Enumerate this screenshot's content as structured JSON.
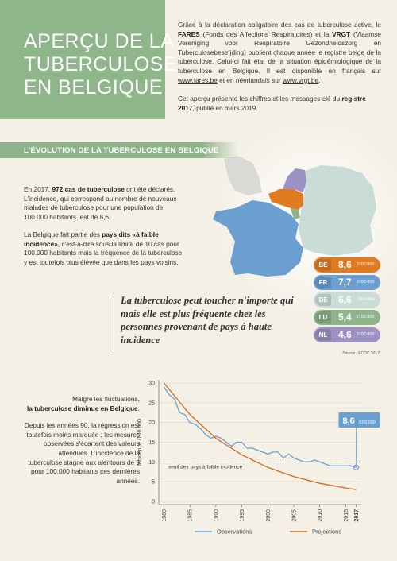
{
  "header": {
    "title": [
      "APERÇU DE LA",
      "TUBERCULOSE",
      "EN BELGIQUE"
    ]
  },
  "intro": {
    "paragraphs": [
      [
        "Grâce à la déclaration obligatoire des cas de tuberculose active, le ",
        "FARES",
        " (Fonds des Affections Respiratoires) et la ",
        "VRGT",
        " (Vlaamse Vereniging voor Respiratoire Gezondheidszorg en Tuberculosebestrijding) publient chaque année le registre belge de la tuberculose. Celui-ci fait état de la situation épidémiologique de la tuberculose en Belgique. Il est disponible en français sur ",
        "www.fares.be",
        " et en néerlandais sur ",
        "www.vrgt.be",
        "."
      ],
      [
        "Cet aperçu présente les chiffres et les messages-clé du ",
        "registre 2017",
        ", publié en mars 2019."
      ]
    ]
  },
  "section": {
    "title": "L'ÉVOLUTION DE LA TUBERCULOSE EN BELGIQUE"
  },
  "incidence_text": {
    "paragraphs": [
      [
        "En 2017, ",
        "972 cas de tuberculose",
        " ont été déclarés. L'incidence, qui correspond au nombre de nouveaux malades de tuberculose pour une population de 100.000 habitants, est de 8,6."
      ],
      [
        "La Belgique fait partie des ",
        "pays dits «à faible incidence»",
        ", c'est-à-dire sous la limite de 10 cas pour 100.000 habitants mais la fréquence de la tuberculose y est toutefois plus élevée que dans les pays voisins."
      ]
    ]
  },
  "rates": [
    {
      "country": "BE",
      "value": "8,6",
      "unit": "/100.000",
      "color": "#e07b22"
    },
    {
      "country": "FR",
      "value": "7,7",
      "unit": "/100.000",
      "color": "#6a9fd0"
    },
    {
      "country": "DE",
      "value": "6,6",
      "unit": "/100.000",
      "color": "#c9ddd6"
    },
    {
      "country": "LU",
      "value": "5,4",
      "unit": "/100.000",
      "color": "#8db48a"
    },
    {
      "country": "NL",
      "value": "4,6",
      "unit": "/100.000",
      "color": "#9c93c4"
    }
  ],
  "quote": "La tuberculose peut toucher n'importe qui mais elle est plus fréquente chez les personnes provenant de pays à haute incidence",
  "source": "Source : ECDC 2017",
  "trend_text": {
    "paragraphs": [
      [
        "Malgré les fluctuations, ",
        "la tuberculose diminue en Belgique",
        "."
      ],
      [
        "Depuis les années 90, la régression est toutefois moins marquée ; les mesures observées s'écartent des valeurs attendues. L'incidence de la tuberculose stagne aux alentours de 9 pour 100.000 habitants ces dernières années."
      ]
    ]
  },
  "chart_data": {
    "type": "line",
    "y_label": "Incidence /100.000",
    "xlim": [
      1979,
      2018
    ],
    "xticks": [
      1980,
      1985,
      1990,
      1995,
      2000,
      2005,
      2010,
      2015,
      2017
    ],
    "ylim": [
      0,
      30
    ],
    "yticks": [
      0,
      5,
      10,
      15,
      20,
      25,
      30
    ],
    "grid": true,
    "series": [
      {
        "name": "Observations",
        "color": "#6a9fd0",
        "x": [
          1980,
          1981,
          1982,
          1983,
          1984,
          1985,
          1986,
          1987,
          1988,
          1989,
          1990,
          1991,
          1992,
          1993,
          1994,
          1995,
          1996,
          1997,
          1998,
          1999,
          2000,
          2001,
          2002,
          2003,
          2004,
          2005,
          2006,
          2007,
          2008,
          2009,
          2010,
          2011,
          2012,
          2013,
          2014,
          2015,
          2016,
          2017
        ],
        "values": [
          29,
          27,
          26,
          22.5,
          22,
          20,
          19.5,
          18.5,
          17,
          16,
          16.5,
          16,
          15,
          14,
          15,
          15,
          13.5,
          13.5,
          13,
          12.5,
          12,
          12.5,
          12.5,
          11,
          12,
          11,
          10.5,
          10,
          10,
          10.5,
          10,
          9.5,
          9,
          9,
          9,
          9,
          9,
          8.6
        ]
      },
      {
        "name": "Projections",
        "color": "#d8661c",
        "x": [
          1980,
          1985,
          1990,
          1995,
          2000,
          2005,
          2010,
          2015,
          2017
        ],
        "values": [
          30,
          22,
          16,
          11.8,
          8.6,
          6.3,
          4.6,
          3.4,
          3
        ]
      }
    ],
    "threshold": {
      "value": 10,
      "label": "seuil des pays à faible incidence"
    },
    "callout": {
      "label": "8,6",
      "unit": "/100.000"
    }
  }
}
